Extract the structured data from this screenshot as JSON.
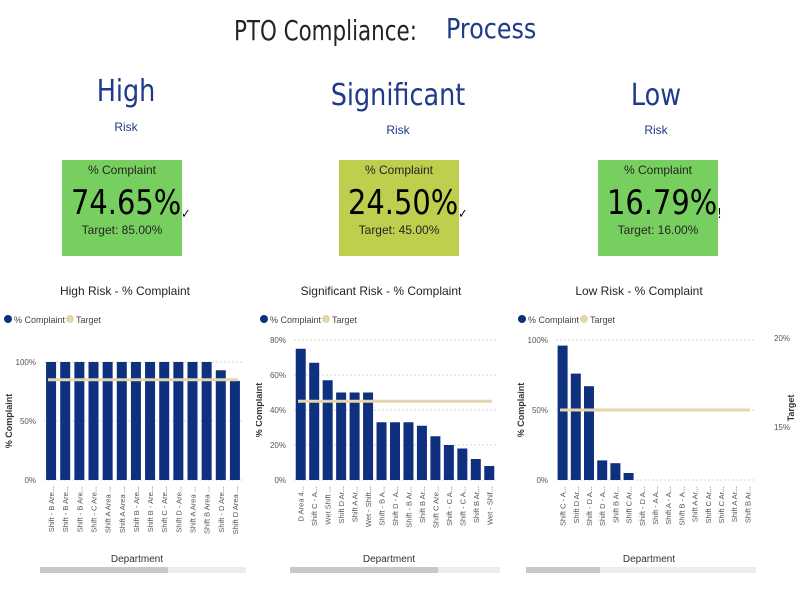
{
  "header": {
    "title": "PTO Compliance:",
    "subtitle": "Process"
  },
  "colors": {
    "navy": "#0f2f7f",
    "target": "#e3d5ad",
    "card_green": "#77cf60",
    "card_olive": "#bdcf4c",
    "accent": "#1f3a8a"
  },
  "risks": [
    {
      "name": "High",
      "label": "Risk",
      "card": {
        "header": "% Complaint",
        "value": "74.65%",
        "mark": "✓",
        "target": "Target: 85.00%",
        "color": "#77cf60"
      }
    },
    {
      "name": "Significant",
      "label": "Risk",
      "card": {
        "header": "% Complaint",
        "value": "24.50%",
        "mark": "✓",
        "target": "Target: 45.00%",
        "color": "#bdcf4c"
      }
    },
    {
      "name": "Low",
      "label": "Risk",
      "card": {
        "header": "% Complaint",
        "value": "16.79%",
        "mark": "!",
        "target": "Target: 16.00%",
        "color": "#77cf60"
      }
    }
  ],
  "chart_data": [
    {
      "type": "bar",
      "title": "High Risk - % Complaint",
      "legend": [
        "% Complaint",
        "Target"
      ],
      "xlabel": "Department",
      "ylabel": "% Complaint",
      "y2label": "",
      "ylim": [
        0,
        100
      ],
      "yticks": [
        "0%",
        "50%",
        "100%"
      ],
      "ytick_values": [
        0,
        50,
        100
      ],
      "y2ticks": [],
      "target": 85,
      "categories": [
        "Shift - B Are...",
        "Shift - B Are...",
        "Shift - B Are...",
        "Shift - C Are...",
        "Shift A Area ...",
        "Shift A Area ...",
        "Shift B - Are...",
        "Shift B - Are...",
        "Shift C - Are...",
        "Shift D - Are...",
        "Shift A Area ...",
        "Shift B Area ...",
        "Shift - D Are...",
        "Shift D Area ..."
      ],
      "values": [
        100,
        100,
        100,
        100,
        100,
        100,
        100,
        100,
        100,
        100,
        100,
        100,
        93,
        84
      ]
    },
    {
      "type": "bar",
      "title": "Significant Risk - % Complaint",
      "legend": [
        "% Complaint",
        "Target"
      ],
      "xlabel": "Department",
      "ylabel": "% Complaint",
      "y2label": "",
      "ylim": [
        0,
        80
      ],
      "yticks": [
        "0%",
        "20%",
        "40%",
        "60%",
        "80%"
      ],
      "ytick_values": [
        0,
        20,
        40,
        60,
        80
      ],
      "y2ticks": [],
      "target": 45,
      "categories": [
        "D Area 4...",
        "Shift C - A...",
        "Wet Shift ...",
        "Shift D Ar...",
        "Shift A Ar...",
        "Wet - Shift...",
        "Shift - B A...",
        "Shift D - A...",
        "Shift - B Ar...",
        "Shift B Ar...",
        "Shift C Are...",
        "Shift - C A...",
        "Shift - C A...",
        "Shift B Ar...",
        "Wet - Shif..."
      ],
      "values": [
        75,
        67,
        57,
        50,
        50,
        50,
        33,
        33,
        33,
        31,
        25,
        20,
        18,
        12,
        8
      ]
    },
    {
      "type": "bar",
      "title": "Low Risk - % Complaint",
      "legend": [
        "% Complaint",
        "Target"
      ],
      "xlabel": "Department",
      "ylabel": "% Complaint",
      "y2label": "Target",
      "ylim": [
        0,
        100
      ],
      "yticks": [
        "0%",
        "50%",
        "100%"
      ],
      "ytick_values": [
        0,
        50,
        100
      ],
      "y2ticks": [
        "20%",
        "15%"
      ],
      "target": 50,
      "categories": [
        "Shift C - A...",
        "Shift D Ar...",
        "Shift - D A...",
        "Shift D - A...",
        "Shift B Ar...",
        "Shift C Ar...",
        "Shift - D A...",
        "Shift - A A...",
        "Shift A - A...",
        "Shift B - A...",
        "Shift A Ar...",
        "Shift C Ar...",
        "Shift C Ar...",
        "Shift A Ar...",
        "Shift B Ar..."
      ],
      "values": [
        96,
        76,
        67,
        14,
        12,
        5,
        0,
        0,
        0,
        0,
        0,
        0,
        0,
        0,
        0
      ]
    }
  ]
}
